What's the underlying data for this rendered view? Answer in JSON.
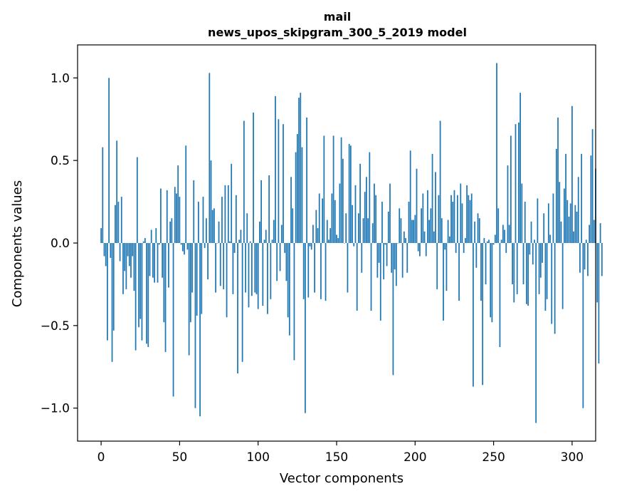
{
  "chart_data": {
    "type": "bar",
    "title": "mail",
    "subtitle": "news_upos_skipgram_300_5_2019 model",
    "xlabel": "Vector components",
    "ylabel": "Components values",
    "xlim": [
      -15,
      315
    ],
    "ylim": [
      -1.2,
      1.2
    ],
    "xticks": [
      0,
      50,
      100,
      150,
      200,
      250,
      300
    ],
    "yticks": [
      -1.0,
      -0.5,
      0.0,
      0.5,
      1.0
    ],
    "xtick_labels": [
      "0",
      "50",
      "100",
      "150",
      "200",
      "250",
      "300"
    ],
    "ytick_labels": [
      "−1.0",
      "−0.5",
      "0.0",
      "0.5",
      "1.0"
    ],
    "grid": false,
    "bar_color": "#1f77b4",
    "values": [
      0.09,
      0.58,
      -0.08,
      -0.14,
      -0.59,
      1.0,
      -0.09,
      -0.72,
      -0.53,
      0.23,
      0.62,
      0.25,
      -0.11,
      0.28,
      -0.31,
      -0.17,
      -0.28,
      -0.08,
      -0.14,
      -0.21,
      -0.08,
      -0.29,
      -0.65,
      0.52,
      -0.51,
      -0.46,
      -0.59,
      0.01,
      0.03,
      -0.61,
      -0.63,
      -0.2,
      0.08,
      -0.21,
      -0.24,
      0.09,
      -0.24,
      -0.01,
      0.33,
      -0.21,
      -0.48,
      -0.66,
      0.32,
      -0.27,
      0.13,
      0.15,
      -0.93,
      0.34,
      0.3,
      0.47,
      0.28,
      -0.01,
      -0.05,
      -0.07,
      0.59,
      -0.04,
      -0.68,
      -0.48,
      -0.3,
      0.38,
      -1.0,
      -0.44,
      0.25,
      -1.05,
      -0.43,
      0.28,
      -0.03,
      0.15,
      -0.22,
      1.03,
      0.5,
      0.2,
      0.21,
      -0.3,
      0.0,
      0.13,
      -0.26,
      0.28,
      -0.28,
      0.35,
      -0.45,
      0.35,
      0.01,
      0.48,
      -0.31,
      -0.06,
      0.29,
      -0.79,
      0.02,
      0.08,
      -0.72,
      0.74,
      -0.3,
      0.18,
      -0.39,
      0.01,
      -0.32,
      0.79,
      -0.3,
      -0.31,
      -0.4,
      0.13,
      0.38,
      -0.38,
      0.02,
      0.08,
      -0.43,
      0.41,
      -0.34,
      0.02,
      0.14,
      0.89,
      -0.23,
      0.75,
      -0.17,
      0.11,
      0.72,
      -0.06,
      -0.23,
      -0.45,
      -0.56,
      0.4,
      0.21,
      -0.71,
      0.55,
      0.66,
      0.88,
      0.91,
      0.58,
      -0.34,
      -1.03,
      0.76,
      -0.33,
      -0.02,
      -0.04,
      0.11,
      -0.3,
      0.2,
      0.09,
      0.3,
      -0.34,
      0.27,
      0.65,
      -0.35,
      0.14,
      0.02,
      0.09,
      0.3,
      0.65,
      0.26,
      0.05,
      0.03,
      0.36,
      0.64,
      0.51,
      0.0,
      0.18,
      -0.3,
      0.6,
      0.59,
      0.23,
      -0.02,
      0.35,
      -0.41,
      0.18,
      0.48,
      -0.18,
      0.15,
      0.31,
      0.4,
      0.15,
      0.55,
      -0.41,
      0.12,
      0.36,
      0.29,
      -0.21,
      -0.12,
      -0.47,
      0.25,
      -0.22,
      -0.01,
      -0.14,
      0.19,
      0.36,
      -0.18,
      -0.8,
      -0.16,
      -0.26,
      0.0,
      0.21,
      0.15,
      -0.21,
      0.07,
      0.03,
      -0.18,
      0.25,
      0.56,
      0.14,
      0.14,
      0.17,
      0.45,
      -0.05,
      -0.08,
      0.21,
      0.3,
      0.07,
      -0.08,
      0.32,
      0.14,
      0.21,
      0.54,
      0.07,
      0.43,
      -0.28,
      0.29,
      0.74,
      0.15,
      -0.47,
      -0.04,
      -0.29,
      0.14,
      0.04,
      0.29,
      0.25,
      0.32,
      -0.06,
      0.29,
      -0.35,
      0.36,
      0.24,
      -0.06,
      0.03,
      0.35,
      0.29,
      0.26,
      0.3,
      -0.87,
      0.13,
      -0.15,
      0.18,
      0.15,
      -0.35,
      -0.86,
      0.03,
      -0.25,
      0.01,
      0.02,
      -0.45,
      -0.48,
      -0.01,
      0.05,
      1.09,
      0.21,
      -0.63,
      0.02,
      0.11,
      0.08,
      -0.06,
      0.47,
      0.11,
      0.65,
      -0.25,
      -0.36,
      0.72,
      -0.31,
      0.73,
      0.91,
      0.36,
      -0.25,
      0.25,
      -0.37,
      -0.38,
      -0.07,
      0.13,
      -0.13,
      0.02,
      -1.09,
      0.27,
      -0.31,
      -0.21,
      -0.12,
      0.18,
      -0.41,
      -0.34,
      0.24,
      0.05,
      -0.49,
      0.3,
      -0.55,
      0.57,
      0.76,
      0.37,
      0.13,
      -0.4,
      0.33,
      0.54,
      0.26,
      0.16,
      0.24,
      0.83,
      0.07,
      0.23,
      0.19,
      0.4,
      -0.18,
      0.54,
      -1.0,
      -0.16,
      0.02,
      -0.2,
      0.11,
      0.53,
      0.69,
      0.14,
      0.45,
      -0.36,
      -0.73,
      0.12,
      -0.2
    ]
  }
}
